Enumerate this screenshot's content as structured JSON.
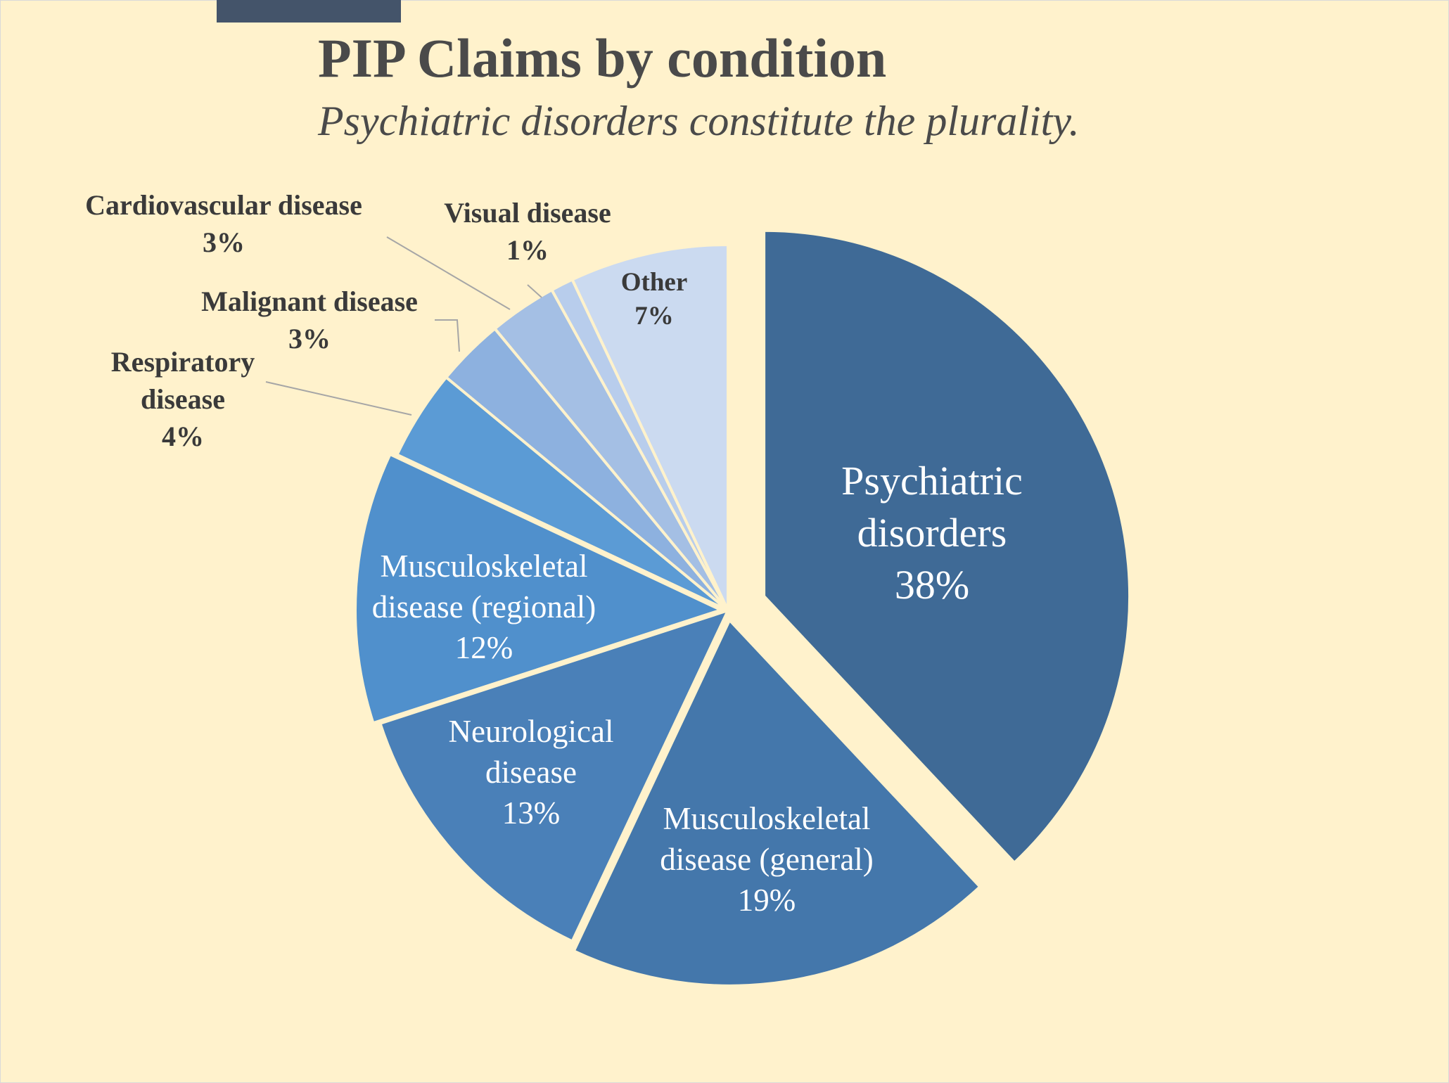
{
  "chart_data": {
    "type": "pie",
    "title": "PIP Claims by condition",
    "subtitle": "Psychiatric disorders constitute the plurality.",
    "slices": [
      {
        "id": "psychiatric",
        "name_lines": [
          "Psychiatric",
          "disorders"
        ],
        "value": 38,
        "value_label": "38%",
        "color": "#3f6a96"
      },
      {
        "id": "msk-general",
        "name_lines": [
          "Musculoskeletal",
          "disease (general)"
        ],
        "value": 19,
        "value_label": "19%",
        "color": "#4477ab"
      },
      {
        "id": "neurological",
        "name_lines": [
          "Neurological",
          "disease"
        ],
        "value": 13,
        "value_label": "13%",
        "color": "#4a80b8"
      },
      {
        "id": "msk-regional",
        "name_lines": [
          "Musculoskeletal",
          "disease (regional)"
        ],
        "value": 12,
        "value_label": "12%",
        "color": "#5090cc"
      },
      {
        "id": "respiratory",
        "name_lines": [
          "Respiratory",
          "disease"
        ],
        "value": 4,
        "value_label": "4%",
        "color": "#5b9bd5"
      },
      {
        "id": "malignant",
        "name_lines": [
          "Malignant disease"
        ],
        "value": 3,
        "value_label": "3%",
        "color": "#8db1df"
      },
      {
        "id": "cardiovascular",
        "name_lines": [
          "Cardiovascular disease"
        ],
        "value": 3,
        "value_label": "3%",
        "color": "#a4bfe4"
      },
      {
        "id": "visual",
        "name_lines": [
          "Visual disease"
        ],
        "value": 1,
        "value_label": "1%",
        "color": "#b8cdec"
      },
      {
        "id": "other",
        "name_lines": [
          "Other"
        ],
        "value": 7,
        "value_label": "7%",
        "color": "#cbdaf0"
      }
    ]
  }
}
